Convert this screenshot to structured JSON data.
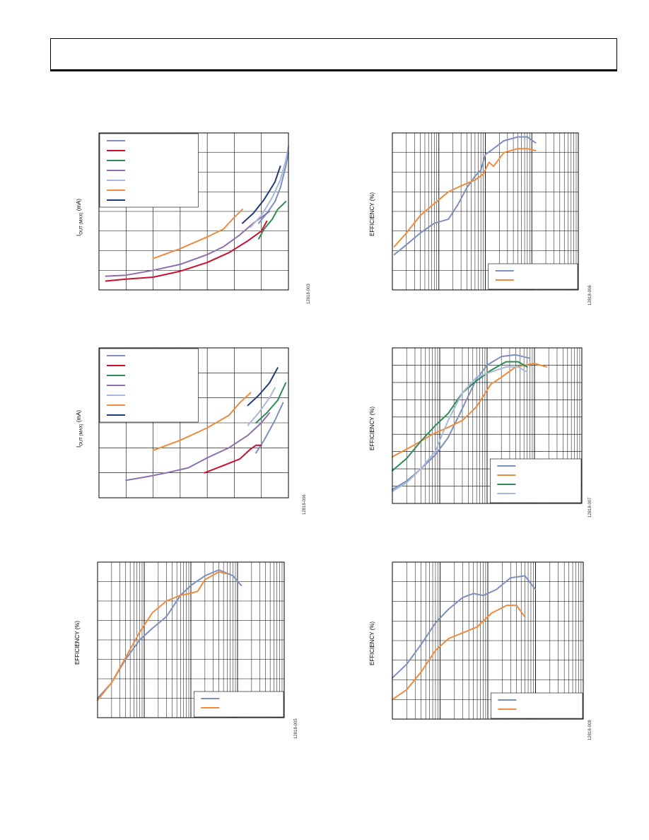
{
  "page": {
    "header": {
      "title": ""
    }
  },
  "chart_data": [
    {
      "id": "fig1",
      "type": "line",
      "ylabel": "IOUT (MAX) (mA)",
      "ylabel_main": "I",
      "ylabel_sub": "OUT (MAX)",
      "ylabel_rest": " (mA)",
      "figure_id": "12818-003",
      "xscale": "linear",
      "xlim": [
        0,
        7
      ],
      "ylim": [
        0,
        8
      ],
      "grid": true,
      "legend": {
        "position": "top-left",
        "entries": 7
      },
      "series": [
        {
          "color": "#7b8fc0",
          "points": [
            [
              5.9,
              3.4
            ],
            [
              6.2,
              3.9
            ],
            [
              6.5,
              4.5
            ],
            [
              6.7,
              5.2
            ],
            [
              6.9,
              6.3
            ],
            [
              7.0,
              7.0
            ]
          ]
        },
        {
          "color": "#c8102e",
          "points": [
            [
              0.25,
              0.45
            ],
            [
              1.0,
              0.55
            ],
            [
              2.0,
              0.65
            ],
            [
              3.0,
              0.95
            ],
            [
              4.0,
              1.4
            ],
            [
              4.8,
              1.9
            ],
            [
              5.5,
              2.5
            ],
            [
              6.0,
              3.0
            ],
            [
              6.2,
              3.5
            ]
          ]
        },
        {
          "color": "#2e8b57",
          "points": [
            [
              5.9,
              2.6
            ],
            [
              6.1,
              3.1
            ],
            [
              6.4,
              3.6
            ],
            [
              6.6,
              4.1
            ],
            [
              6.9,
              4.5
            ]
          ]
        },
        {
          "color": "#8b6fae",
          "points": [
            [
              0.25,
              0.7
            ],
            [
              1.0,
              0.75
            ],
            [
              2.0,
              1.0
            ],
            [
              3.0,
              1.3
            ],
            [
              4.0,
              1.8
            ],
            [
              4.6,
              2.2
            ],
            [
              5.2,
              2.8
            ],
            [
              5.7,
              3.4
            ],
            [
              6.3,
              4.0
            ]
          ]
        },
        {
          "color": "#a8b8d8",
          "points": [
            [
              5.6,
              3.2
            ],
            [
              6.0,
              3.8
            ],
            [
              6.4,
              4.7
            ],
            [
              6.7,
              5.6
            ],
            [
              6.9,
              6.6
            ],
            [
              7.0,
              7.3
            ]
          ]
        },
        {
          "color": "#f08a3c",
          "points": [
            [
              2.0,
              1.6
            ],
            [
              3.0,
              2.1
            ],
            [
              4.0,
              2.7
            ],
            [
              4.6,
              3.1
            ],
            [
              5.0,
              3.7
            ],
            [
              5.3,
              4.1
            ]
          ]
        },
        {
          "color": "#1f3a7a",
          "points": [
            [
              5.3,
              3.4
            ],
            [
              5.7,
              3.9
            ],
            [
              6.1,
              4.6
            ],
            [
              6.5,
              5.5
            ],
            [
              6.7,
              6.3
            ]
          ]
        }
      ]
    },
    {
      "id": "fig2",
      "type": "line",
      "ylabel": "EFFICIENCY (%)",
      "figure_id": "12818-006",
      "xscale": "log",
      "xlim": [
        0.1,
        1000
      ],
      "ylim": [
        0,
        8
      ],
      "grid": true,
      "legend": {
        "position": "bottom-right",
        "entries": 2
      },
      "series": [
        {
          "color": "#7b8fc0",
          "points": [
            [
              0.11,
              1.8
            ],
            [
              0.2,
              2.3
            ],
            [
              0.4,
              2.9
            ],
            [
              0.8,
              3.4
            ],
            [
              1.6,
              3.6
            ],
            [
              2.5,
              4.3
            ],
            [
              4,
              5.2
            ],
            [
              6,
              5.8
            ],
            [
              8,
              6.1
            ],
            [
              10,
              6.9
            ],
            [
              15,
              7.2
            ],
            [
              25,
              7.6
            ],
            [
              50,
              7.8
            ],
            [
              80,
              7.8
            ],
            [
              120,
              7.5
            ]
          ]
        },
        {
          "color": "#f08a3c",
          "points": [
            [
              0.11,
              2.2
            ],
            [
              0.2,
              2.9
            ],
            [
              0.4,
              3.8
            ],
            [
              0.8,
              4.4
            ],
            [
              1.6,
              5.0
            ],
            [
              3,
              5.3
            ],
            [
              6,
              5.6
            ],
            [
              9,
              5.9
            ],
            [
              12,
              6.5
            ],
            [
              15,
              6.3
            ],
            [
              25,
              7.0
            ],
            [
              50,
              7.2
            ],
            [
              80,
              7.2
            ],
            [
              120,
              7.1
            ]
          ]
        }
      ]
    },
    {
      "id": "fig3",
      "type": "line",
      "ylabel": "IOUT (MAX) (mA)",
      "ylabel_main": "I",
      "ylabel_sub": "OUT (MAX)",
      "ylabel_rest": " (mA)",
      "figure_id": "12818-006",
      "xscale": "linear",
      "xlim": [
        0,
        7
      ],
      "ylim": [
        0,
        6
      ],
      "grid": true,
      "legend": {
        "position": "top-left",
        "entries": 7
      },
      "series": [
        {
          "color": "#7b8fc0",
          "points": [
            [
              5.8,
              1.8
            ],
            [
              6.1,
              2.3
            ],
            [
              6.5,
              3.1
            ],
            [
              6.8,
              3.8
            ]
          ]
        },
        {
          "color": "#c8102e",
          "points": [
            [
              3.9,
              1.0
            ],
            [
              4.5,
              1.25
            ],
            [
              5.2,
              1.55
            ],
            [
              5.6,
              1.95
            ],
            [
              5.8,
              2.1
            ],
            [
              6.0,
              2.1
            ]
          ]
        },
        {
          "color": "#2e8b57",
          "points": [
            [
              5.8,
              3.0
            ],
            [
              6.2,
              3.4
            ],
            [
              6.6,
              3.9
            ],
            [
              6.9,
              4.6
            ]
          ]
        },
        {
          "color": "#8b6fae",
          "points": [
            [
              1.0,
              0.7
            ],
            [
              1.8,
              0.85
            ],
            [
              2.5,
              1.0
            ],
            [
              3.3,
              1.2
            ],
            [
              4.0,
              1.6
            ],
            [
              4.8,
              2.0
            ],
            [
              5.5,
              2.5
            ],
            [
              6.0,
              3.0
            ],
            [
              6.3,
              3.4
            ]
          ]
        },
        {
          "color": "#a8b8d8",
          "points": [
            [
              5.5,
              2.9
            ],
            [
              5.9,
              3.4
            ],
            [
              6.3,
              4.0
            ],
            [
              6.5,
              4.4
            ]
          ]
        },
        {
          "color": "#f08a3c",
          "points": [
            [
              2.0,
              1.9
            ],
            [
              3.0,
              2.3
            ],
            [
              4.0,
              2.8
            ],
            [
              4.8,
              3.3
            ],
            [
              5.2,
              3.8
            ],
            [
              5.6,
              4.2
            ]
          ]
        },
        {
          "color": "#1f3a7a",
          "points": [
            [
              5.5,
              3.7
            ],
            [
              5.9,
              4.1
            ],
            [
              6.3,
              4.6
            ],
            [
              6.6,
              5.2
            ]
          ]
        }
      ]
    },
    {
      "id": "fig4",
      "type": "line",
      "ylabel": "EFFICIENCY (%)",
      "figure_id": "12818-007",
      "xscale": "log",
      "xlim": [
        0.1,
        1000
      ],
      "ylim": [
        0,
        9
      ],
      "grid": true,
      "legend": {
        "position": "bottom-right",
        "entries": 4
      },
      "series": [
        {
          "color": "#7b8fc0",
          "points": [
            [
              0.1,
              0.8
            ],
            [
              0.2,
              1.3
            ],
            [
              0.4,
              2.0
            ],
            [
              0.8,
              2.8
            ],
            [
              1.5,
              3.8
            ],
            [
              3,
              5.5
            ],
            [
              6,
              7.2
            ],
            [
              10,
              8.0
            ],
            [
              20,
              8.5
            ],
            [
              40,
              8.6
            ],
            [
              80,
              8.4
            ]
          ]
        },
        {
          "color": "#f08a3c",
          "points": [
            [
              0.1,
              2.7
            ],
            [
              0.3,
              3.4
            ],
            [
              0.7,
              4.0
            ],
            [
              1.5,
              4.4
            ],
            [
              3,
              4.8
            ],
            [
              6,
              5.6
            ],
            [
              12,
              6.9
            ],
            [
              20,
              7.3
            ],
            [
              40,
              7.9
            ],
            [
              100,
              8.1
            ],
            [
              180,
              7.9
            ]
          ]
        },
        {
          "color": "#2e8b57",
          "points": [
            [
              0.1,
              1.9
            ],
            [
              0.2,
              2.6
            ],
            [
              0.4,
              3.6
            ],
            [
              0.8,
              4.5
            ],
            [
              1.5,
              5.2
            ],
            [
              3,
              6.4
            ],
            [
              6,
              7.1
            ],
            [
              12,
              7.7
            ],
            [
              25,
              8.2
            ],
            [
              45,
              8.2
            ],
            [
              70,
              7.9
            ]
          ]
        },
        {
          "color": "#a8b8d8",
          "points": [
            [
              0.1,
              0.7
            ],
            [
              0.2,
              1.2
            ],
            [
              0.4,
              2.0
            ],
            [
              0.8,
              3.0
            ],
            [
              1.5,
              4.8
            ],
            [
              3,
              6.4
            ],
            [
              6,
              7.3
            ],
            [
              12,
              7.6
            ],
            [
              25,
              7.9
            ],
            [
              45,
              7.9
            ],
            [
              70,
              7.6
            ]
          ]
        }
      ]
    },
    {
      "id": "fig5",
      "type": "line",
      "ylabel": "EFFICIENCY (%)",
      "figure_id": "12818-005",
      "xscale": "log",
      "xlim": [
        0.1,
        1000
      ],
      "ylim": [
        0,
        8
      ],
      "grid": true,
      "legend": {
        "position": "bottom-right",
        "entries": 2
      },
      "series": [
        {
          "color": "#7b8fc0",
          "points": [
            [
              0.1,
              1.0
            ],
            [
              0.2,
              1.8
            ],
            [
              0.4,
              3.0
            ],
            [
              0.8,
              4.0
            ],
            [
              1.5,
              4.6
            ],
            [
              3,
              5.2
            ],
            [
              6,
              6.3
            ],
            [
              10,
              6.8
            ],
            [
              20,
              7.3
            ],
            [
              40,
              7.6
            ],
            [
              80,
              7.3
            ],
            [
              120,
              6.8
            ]
          ]
        },
        {
          "color": "#f08a3c",
          "points": [
            [
              0.1,
              0.9
            ],
            [
              0.2,
              1.8
            ],
            [
              0.4,
              3.1
            ],
            [
              0.8,
              4.4
            ],
            [
              1.5,
              5.4
            ],
            [
              3,
              6.0
            ],
            [
              6,
              6.3
            ],
            [
              10,
              6.4
            ],
            [
              14,
              6.5
            ],
            [
              20,
              7.1
            ],
            [
              40,
              7.5
            ],
            [
              60,
              7.4
            ]
          ]
        }
      ]
    },
    {
      "id": "fig6",
      "type": "line",
      "ylabel": "EFFICIENCY (%)",
      "figure_id": "12818-008",
      "xscale": "log",
      "xlim": [
        0.1,
        1000
      ],
      "ylim": [
        0,
        8
      ],
      "grid": true,
      "legend": {
        "position": "bottom-right",
        "entries": 2
      },
      "series": [
        {
          "color": "#7b8fc0",
          "points": [
            [
              0.1,
              2.1
            ],
            [
              0.2,
              2.8
            ],
            [
              0.4,
              3.8
            ],
            [
              0.8,
              4.9
            ],
            [
              1.5,
              5.6
            ],
            [
              3,
              6.2
            ],
            [
              5,
              6.4
            ],
            [
              8,
              6.3
            ],
            [
              15,
              6.6
            ],
            [
              30,
              7.2
            ],
            [
              60,
              7.3
            ],
            [
              100,
              6.6
            ]
          ]
        },
        {
          "color": "#f08a3c",
          "points": [
            [
              0.1,
              1.0
            ],
            [
              0.2,
              1.5
            ],
            [
              0.4,
              2.4
            ],
            [
              0.8,
              3.5
            ],
            [
              1.5,
              4.1
            ],
            [
              3,
              4.4
            ],
            [
              6,
              4.7
            ],
            [
              12,
              5.4
            ],
            [
              25,
              5.8
            ],
            [
              40,
              5.8
            ],
            [
              60,
              5.2
            ]
          ]
        }
      ]
    }
  ]
}
